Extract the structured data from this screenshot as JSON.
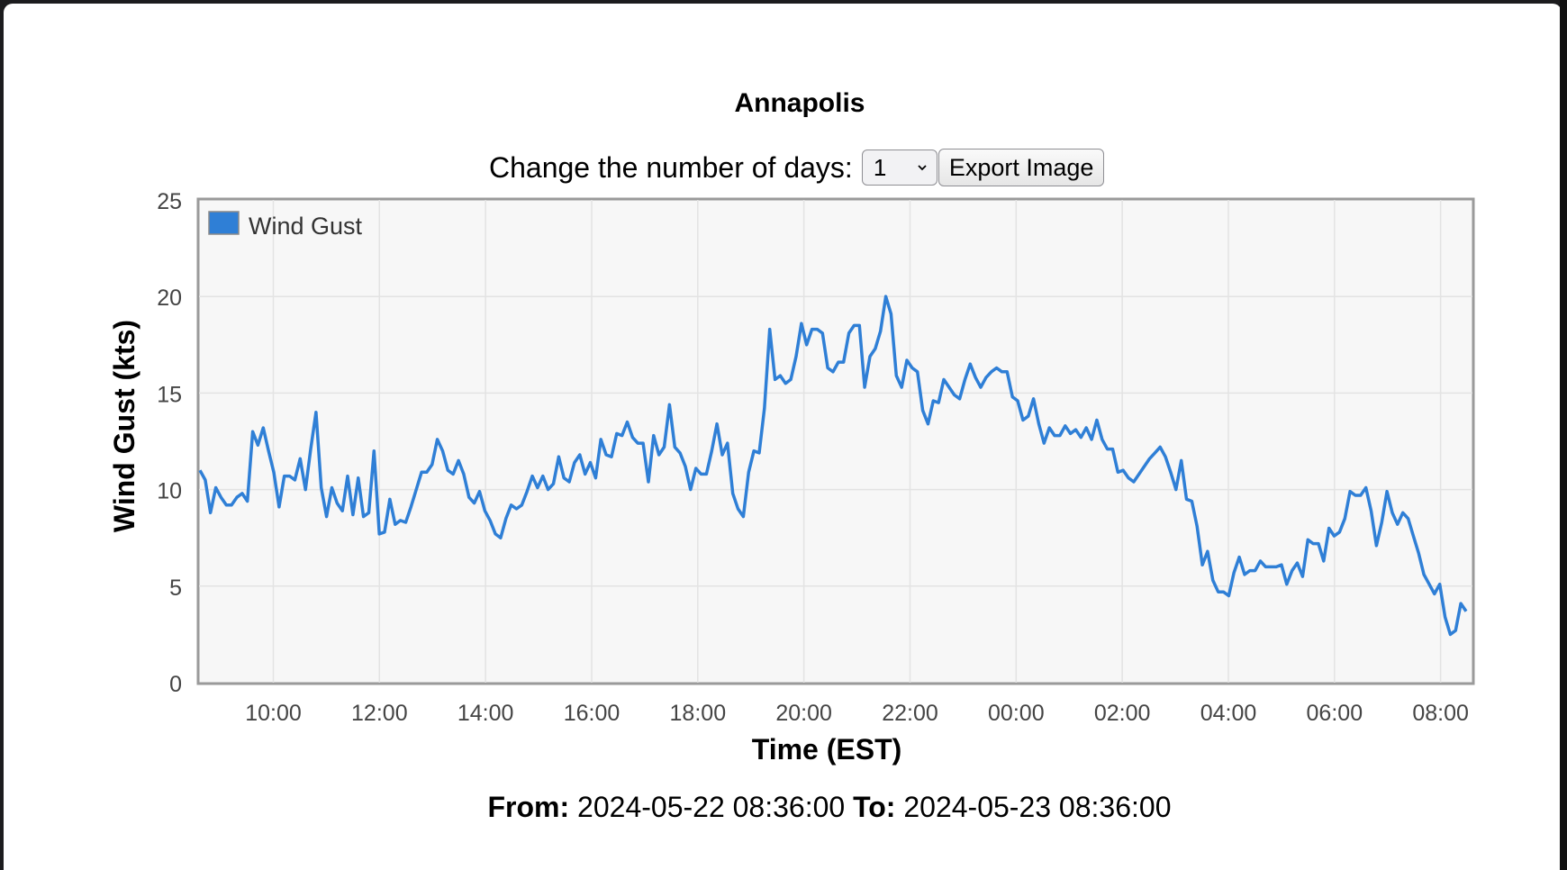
{
  "page": {
    "title": "Annapolis",
    "days_label": "Change the number of days:",
    "days_value": "1",
    "export_label": "Export Image",
    "from_label": "From:",
    "from_value": "2024-05-22 08:36:00",
    "to_label": "To:",
    "to_value": "2024-05-23 08:36:00"
  },
  "chart_data": {
    "type": "line",
    "title": "Annapolis",
    "xlabel": "Time (EST)",
    "ylabel": "Wind Gust (kts)",
    "ylim": [
      0,
      25
    ],
    "yticks": [
      0,
      5,
      10,
      15,
      20,
      25
    ],
    "x_tick_labels": [
      "10:00",
      "12:00",
      "14:00",
      "16:00",
      "18:00",
      "20:00",
      "22:00",
      "00:00",
      "02:00",
      "04:00",
      "06:00",
      "08:00"
    ],
    "x_start": "2024-05-22 08:36",
    "x_end": "2024-05-23 08:36",
    "grid": true,
    "legend_position": "top-left",
    "series": [
      {
        "name": "Wind Gust",
        "color": "#2f7fd6",
        "values": [
          11.0,
          10.5,
          8.8,
          10.1,
          9.6,
          9.2,
          9.2,
          9.6,
          9.8,
          9.4,
          13.0,
          12.3,
          13.2,
          12.0,
          10.9,
          9.1,
          10.7,
          10.7,
          10.5,
          11.6,
          10.0,
          12.1,
          14.0,
          10.1,
          8.6,
          10.1,
          9.3,
          8.9,
          10.7,
          8.7,
          10.6,
          8.6,
          8.8,
          12.0,
          7.7,
          7.8,
          9.5,
          8.2,
          8.4,
          8.3,
          9.1,
          10.0,
          10.9,
          10.9,
          11.3,
          12.6,
          12.0,
          11.0,
          10.8,
          11.5,
          10.8,
          9.6,
          9.3,
          9.9,
          8.9,
          8.4,
          7.7,
          7.5,
          8.5,
          9.2,
          9.0,
          9.2,
          9.9,
          10.7,
          10.1,
          10.7,
          10.0,
          10.3,
          11.7,
          10.6,
          10.4,
          11.4,
          11.8,
          10.8,
          11.4,
          10.6,
          12.6,
          11.8,
          11.7,
          12.9,
          12.8,
          13.5,
          12.7,
          12.4,
          12.4,
          10.4,
          12.8,
          11.8,
          12.2,
          14.4,
          12.2,
          11.9,
          11.2,
          10.0,
          11.1,
          10.8,
          10.8,
          12.0,
          13.4,
          11.8,
          12.4,
          9.8,
          9.0,
          8.6,
          10.9,
          12.0,
          11.9,
          14.2,
          18.3,
          15.7,
          15.9,
          15.5,
          15.7,
          16.9,
          18.6,
          17.5,
          18.3,
          18.3,
          18.1,
          16.3,
          16.1,
          16.6,
          16.6,
          18.1,
          18.5,
          18.5,
          15.3,
          16.9,
          17.3,
          18.2,
          20.0,
          19.1,
          15.9,
          15.3,
          16.7,
          16.3,
          16.1,
          14.1,
          13.4,
          14.6,
          14.5,
          15.7,
          15.3,
          14.9,
          14.7,
          15.7,
          16.5,
          15.8,
          15.3,
          15.8,
          16.1,
          16.3,
          16.1,
          16.1,
          14.8,
          14.6,
          13.6,
          13.8,
          14.7,
          13.4,
          12.4,
          13.2,
          12.8,
          12.8,
          13.3,
          12.9,
          13.1,
          12.7,
          13.2,
          12.6,
          13.6,
          12.6,
          12.1,
          12.1,
          10.9,
          11.0,
          10.6,
          10.4,
          10.8,
          11.2,
          11.6,
          11.9,
          12.2,
          11.7,
          10.9,
          10.0,
          11.5,
          9.5,
          9.4,
          8.1,
          6.1,
          6.8,
          5.3,
          4.7,
          4.7,
          4.5,
          5.7,
          6.5,
          5.6,
          5.8,
          5.8,
          6.3,
          6.0,
          6.0,
          6.0,
          6.1,
          5.1,
          5.8,
          6.2,
          5.5,
          7.4,
          7.2,
          7.2,
          6.3,
          8.0,
          7.6,
          7.8,
          8.5,
          9.9,
          9.7,
          9.7,
          10.1,
          8.9,
          7.1,
          8.3,
          9.9,
          8.8,
          8.2,
          8.8,
          8.5,
          7.6,
          6.7,
          5.6,
          5.1,
          4.6,
          5.1,
          3.4,
          2.5,
          2.7,
          4.1,
          3.7
        ]
      }
    ]
  }
}
